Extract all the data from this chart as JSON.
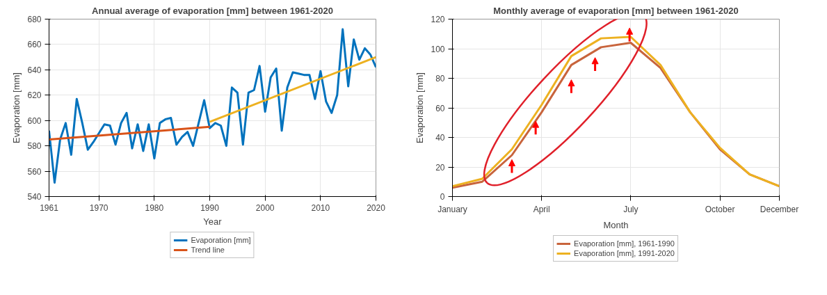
{
  "chart_data": [
    {
      "type": "line",
      "title": "Annual average of evaporation [mm] between 1961-2020",
      "xlabel": "Year",
      "ylabel": "Evaporation [mm]",
      "x": [
        1961,
        1962,
        1963,
        1964,
        1965,
        1966,
        1967,
        1968,
        1969,
        1970,
        1971,
        1972,
        1973,
        1974,
        1975,
        1976,
        1977,
        1978,
        1979,
        1980,
        1981,
        1982,
        1983,
        1984,
        1985,
        1986,
        1987,
        1988,
        1989,
        1990,
        1991,
        1992,
        1993,
        1994,
        1995,
        1996,
        1997,
        1998,
        1999,
        2000,
        2001,
        2002,
        2003,
        2004,
        2005,
        2006,
        2007,
        2008,
        2009,
        2010,
        2011,
        2012,
        2013,
        2014,
        2015,
        2016,
        2017,
        2018,
        2019,
        2020
      ],
      "series": [
        {
          "name": "Evaporation [mm]",
          "color": "#0072bd",
          "values": [
            592,
            551,
            585,
            598,
            573,
            617,
            598,
            577,
            583,
            590,
            597,
            596,
            581,
            598,
            606,
            578,
            597,
            576,
            597,
            570,
            598,
            601,
            602,
            581,
            587,
            591,
            580,
            598,
            616,
            594,
            598,
            596,
            580,
            626,
            622,
            581,
            622,
            624,
            643,
            607,
            634,
            641,
            592,
            626,
            638,
            637,
            636,
            636,
            617,
            639,
            615,
            606,
            620,
            672,
            627,
            664,
            648,
            657,
            652,
            642
          ]
        },
        {
          "name": "Trend line",
          "color": "#d95319",
          "x": [
            1961,
            1990
          ],
          "values": [
            585,
            595
          ]
        },
        {
          "color": "#edb120",
          "x": [
            1990,
            2020
          ],
          "values": [
            599,
            650
          ]
        }
      ],
      "xlim": [
        1961,
        2020
      ],
      "xticks": [
        1961,
        1970,
        1980,
        1990,
        2000,
        2010,
        2020
      ],
      "ylim": [
        540,
        680
      ],
      "yticks": [
        540,
        560,
        580,
        600,
        620,
        640,
        660,
        680
      ],
      "grid": true,
      "legend": "bottom"
    },
    {
      "type": "line",
      "title": "Monthly average of evaporation [mm] between 1961-2020",
      "xlabel": "Month",
      "ylabel": "Evaporation [mm]",
      "categories": [
        "January",
        null,
        null,
        "April",
        null,
        null,
        "July",
        null,
        null,
        "October",
        null,
        "December"
      ],
      "series": [
        {
          "name": "Evaporation [mm], 1961-1990",
          "color": "#c8643c",
          "values": [
            6,
            10,
            28,
            57,
            89,
            101,
            104,
            87,
            57,
            32,
            15,
            7
          ]
        },
        {
          "name": "Evaporation [mm], 1991-2020",
          "color": "#edb120",
          "values": [
            7,
            12,
            32,
            62,
            95,
            107,
            108,
            89,
            57,
            33,
            15,
            7
          ]
        }
      ],
      "ylim": [
        0,
        120
      ],
      "yticks": [
        0,
        20,
        40,
        60,
        80,
        100,
        120
      ],
      "grid": true,
      "legend": "bottom"
    }
  ]
}
